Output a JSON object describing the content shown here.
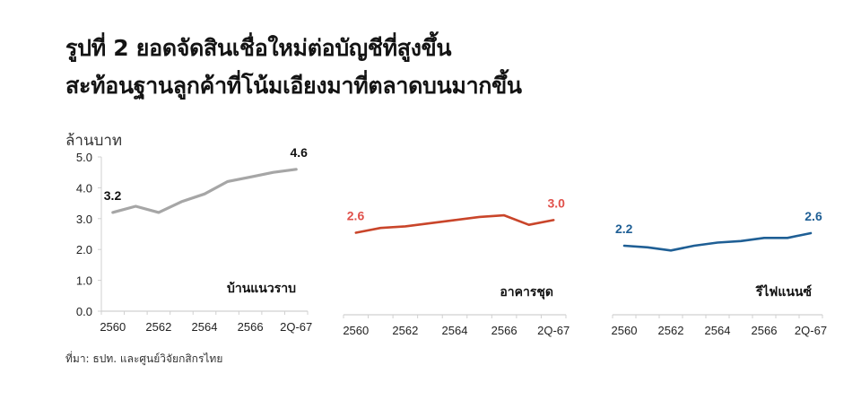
{
  "title": {
    "line1": "รูปที่ 2 ยอดจัดสินเชื่อใหม่ต่อบัญชีที่สูงขึ้น",
    "line2": "สะท้อนฐานลูกค้าที่โน้มเอียงมาที่ตลาดบนมากขึ้น"
  },
  "unit_label": "ล้านบาท",
  "source": "ที่มา: ธปท. และศูนย์วิจัยกสิกรไทย",
  "colors": {
    "detached_house": "#a6a6a6",
    "condominium": "#c9452a",
    "condominium_label": "#e0504a",
    "refinance": "#1f5f95",
    "axis": "#d0d0d0",
    "tick_text": "#222222"
  },
  "chart_data": [
    {
      "type": "line",
      "title": "บ้านแนวราบ",
      "xlabel": "",
      "ylabel": "ล้านบาท",
      "ylim": [
        0,
        5
      ],
      "yticks": [
        "0.0",
        "1.0",
        "2.0",
        "3.0",
        "4.0",
        "5.0"
      ],
      "categories": [
        "2560",
        "2561",
        "2562",
        "2563",
        "2564",
        "2565",
        "2566",
        "1Q-67",
        "2Q-67"
      ],
      "tick_labels": [
        "2560",
        "2562",
        "2564",
        "2566",
        "2Q-67"
      ],
      "values": [
        3.2,
        3.4,
        3.2,
        3.55,
        3.8,
        4.2,
        4.35,
        4.5,
        4.6
      ],
      "annotations": [
        {
          "index": 0,
          "text": "3.2"
        },
        {
          "index": 8,
          "text": "4.6"
        }
      ],
      "grid": false
    },
    {
      "type": "line",
      "title": "อาคารชุด",
      "ylim": [
        0,
        5
      ],
      "categories": [
        "2560",
        "2561",
        "2562",
        "2563",
        "2564",
        "2565",
        "2566",
        "1Q-67",
        "2Q-67"
      ],
      "tick_labels": [
        "2560",
        "2562",
        "2564",
        "2566",
        "2Q-67"
      ],
      "values": [
        2.6,
        2.75,
        2.8,
        2.9,
        3.0,
        3.1,
        3.15,
        2.85,
        3.0
      ],
      "annotations": [
        {
          "index": 0,
          "text": "2.6"
        },
        {
          "index": 8,
          "text": "3.0"
        }
      ],
      "grid": false
    },
    {
      "type": "line",
      "title": "รีไฟแนนซ์",
      "ylim": [
        0,
        5
      ],
      "categories": [
        "2560",
        "2561",
        "2562",
        "2563",
        "2564",
        "2565",
        "2566",
        "1Q-67",
        "2Q-67"
      ],
      "tick_labels": [
        "2560",
        "2562",
        "2564",
        "2566",
        "2Q-67"
      ],
      "values": [
        2.2,
        2.15,
        2.05,
        2.2,
        2.3,
        2.35,
        2.45,
        2.45,
        2.6
      ],
      "annotations": [
        {
          "index": 0,
          "text": "2.2"
        },
        {
          "index": 8,
          "text": "2.6"
        }
      ],
      "grid": false
    }
  ]
}
